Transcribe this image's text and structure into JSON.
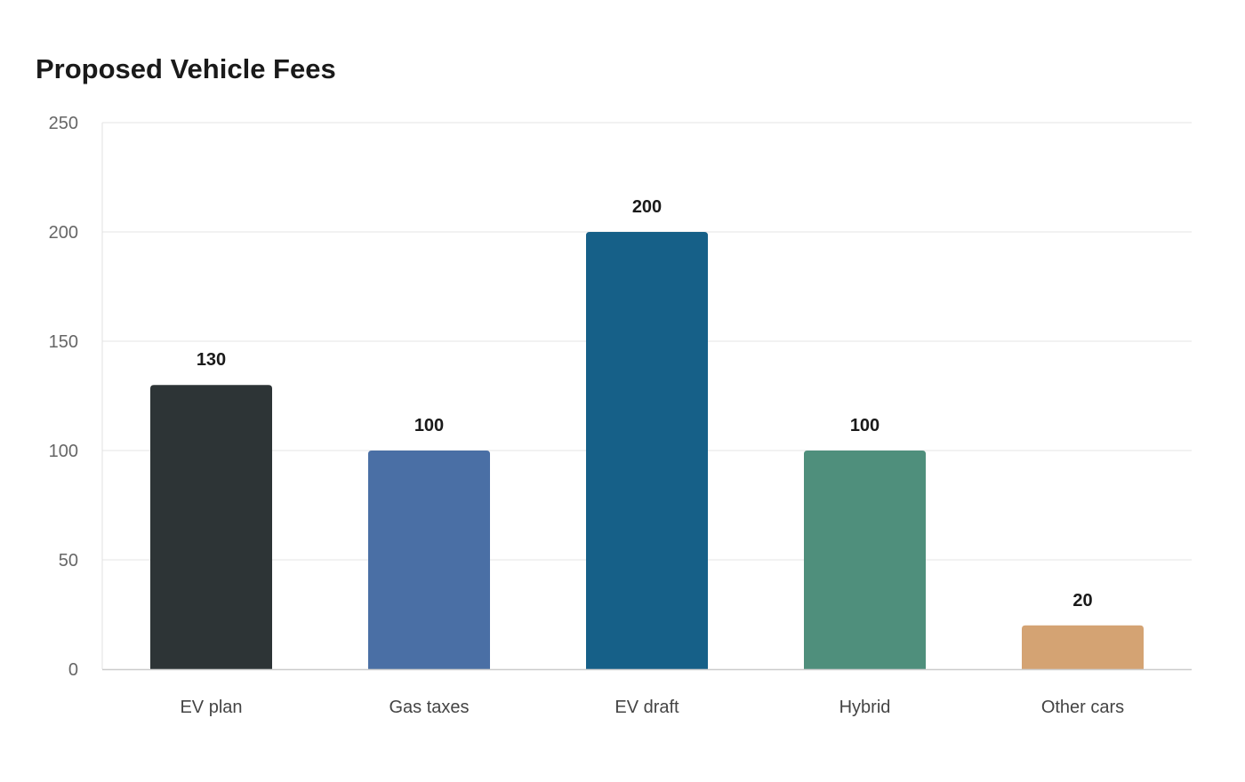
{
  "chart_data": {
    "type": "bar",
    "title": "Proposed Vehicle Fees",
    "xlabel": "",
    "ylabel": "",
    "categories": [
      "EV plan",
      "Gas taxes",
      "EV draft",
      "Hybrid",
      "Other cars"
    ],
    "values": [
      130,
      100,
      200,
      100,
      20
    ],
    "value_labels": [
      "130",
      "100",
      "200",
      "100",
      "20"
    ],
    "colors": [
      "#2d3436",
      "#4a6fa5",
      "#166088",
      "#4f8f7c",
      "#d4a373"
    ],
    "ylim": [
      0,
      250
    ],
    "yticks": [
      0,
      50,
      100,
      150,
      200,
      250
    ],
    "grid": true,
    "legend": "none"
  }
}
